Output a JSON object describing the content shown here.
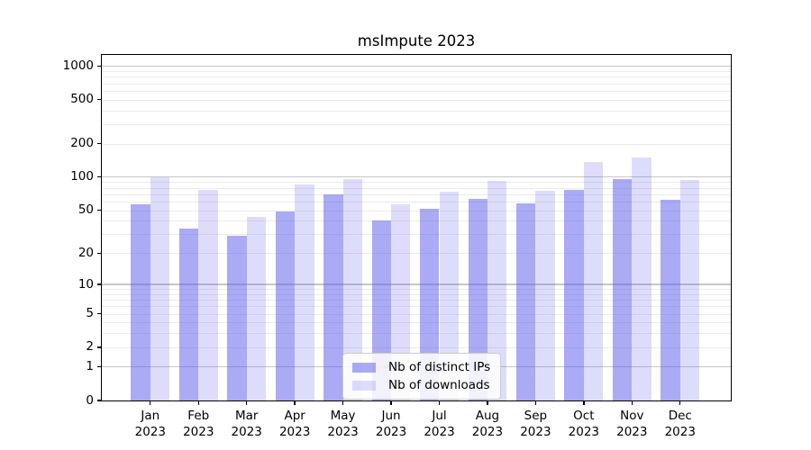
{
  "figure": {
    "title": "msImpute 2023"
  },
  "chart_data": {
    "type": "bar",
    "title": "msImpute 2023",
    "x_axis": {
      "months": [
        "Jan",
        "Feb",
        "Mar",
        "Apr",
        "May",
        "Jun",
        "Jul",
        "Aug",
        "Sep",
        "Oct",
        "Nov",
        "Dec"
      ],
      "year": "2023"
    },
    "y_axis": {
      "scale": "log1p",
      "ticks": [
        0,
        1,
        2,
        5,
        10,
        20,
        50,
        100,
        200,
        500,
        1000
      ],
      "major_gridlines": [
        1,
        10,
        100,
        1000
      ],
      "minor_gridline_bases": [
        1,
        10,
        100
      ],
      "ylim": [
        0,
        1260
      ]
    },
    "series": [
      {
        "name": "Nb of distinct IPs",
        "color": "rgba(85,85,235,0.5)",
        "values": [
          57,
          34,
          29,
          49,
          70,
          40,
          51,
          63,
          58,
          77,
          96,
          62
        ]
      },
      {
        "name": "Nb of downloads",
        "color": "rgba(85,85,235,0.2)",
        "values": [
          100,
          76,
          43,
          86,
          96,
          57,
          74,
          93,
          75,
          138,
          150,
          94
        ]
      }
    ],
    "legend_position": "lower center",
    "grid": true
  },
  "legend": {
    "items": [
      {
        "label": "Nb of distinct IPs",
        "color": "rgba(85,85,235,0.5)"
      },
      {
        "label": "Nb of downloads",
        "color": "rgba(85,85,235,0.2)"
      }
    ]
  },
  "colors": {
    "grid_major": "#c6c6c6",
    "grid_minor": "#ebebeb",
    "axis": "#000000",
    "background": "#ffffff"
  }
}
